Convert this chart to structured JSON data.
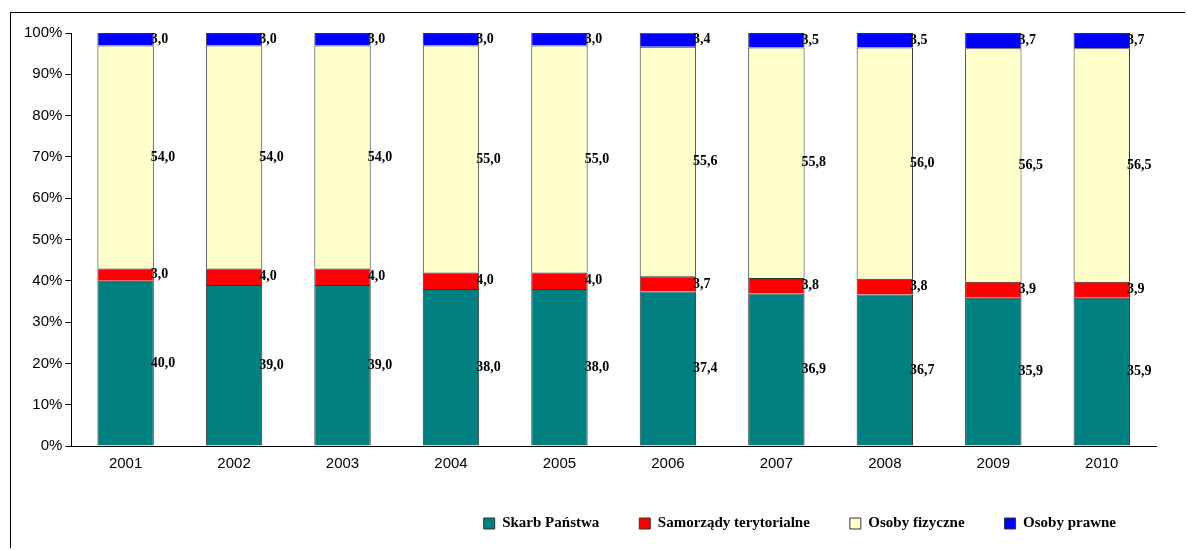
{
  "chart_data": {
    "type": "bar",
    "stacked": true,
    "categories": [
      "2001",
      "2002",
      "2003",
      "2004",
      "2005",
      "2006",
      "2007",
      "2008",
      "2009",
      "2010"
    ],
    "series": [
      {
        "name": "Skarb Państwa",
        "color": "#008080",
        "values": [
          40.0,
          39.0,
          39.0,
          38.0,
          38.0,
          37.4,
          36.9,
          36.7,
          35.9,
          35.9
        ],
        "value_labels": [
          "40,0",
          "39,0",
          "39,0",
          "38,0",
          "38,0",
          "37,4",
          "36,9",
          "36,7",
          "35,9",
          "35,9"
        ]
      },
      {
        "name": "Samorządy terytorialne",
        "color": "#ff0000",
        "values": [
          3.0,
          4.0,
          4.0,
          4.0,
          4.0,
          3.7,
          3.8,
          3.8,
          3.9,
          3.9
        ],
        "value_labels": [
          "3,0",
          "4,0",
          "4,0",
          "4,0",
          "4,0",
          "3,7",
          "3,8",
          "3,8",
          "3,9",
          "3,9"
        ]
      },
      {
        "name": "Osoby fizyczne",
        "color": "#ffffcc",
        "values": [
          54.0,
          54.0,
          54.0,
          55.0,
          55.0,
          55.6,
          55.8,
          56.0,
          56.5,
          56.5
        ],
        "value_labels": [
          "54,0",
          "54,0",
          "54,0",
          "55,0",
          "55,0",
          "55,6",
          "55,8",
          "56,0",
          "56,5",
          "56,5"
        ]
      },
      {
        "name": "Osoby prawne",
        "color": "#0000ff",
        "values": [
          3.0,
          3.0,
          3.0,
          3.0,
          3.0,
          3.4,
          3.5,
          3.5,
          3.7,
          3.7
        ],
        "value_labels": [
          "3,0",
          "3,0",
          "3,0",
          "3,0",
          "3,0",
          "3,4",
          "3,5",
          "3,5",
          "3,7",
          "3,7"
        ]
      }
    ],
    "ylim": [
      0,
      100
    ],
    "yticks": [
      {
        "value": 0,
        "label": "0%"
      },
      {
        "value": 10,
        "label": "10%"
      },
      {
        "value": 20,
        "label": "20%"
      },
      {
        "value": 30,
        "label": "30%"
      },
      {
        "value": 40,
        "label": "40%"
      },
      {
        "value": 50,
        "label": "50%"
      },
      {
        "value": 60,
        "label": "60%"
      },
      {
        "value": 70,
        "label": "70%"
      },
      {
        "value": 80,
        "label": "80%"
      },
      {
        "value": 90,
        "label": "90%"
      },
      {
        "value": 100,
        "label": "100%"
      }
    ],
    "grid": false,
    "legend": "bottom right"
  }
}
